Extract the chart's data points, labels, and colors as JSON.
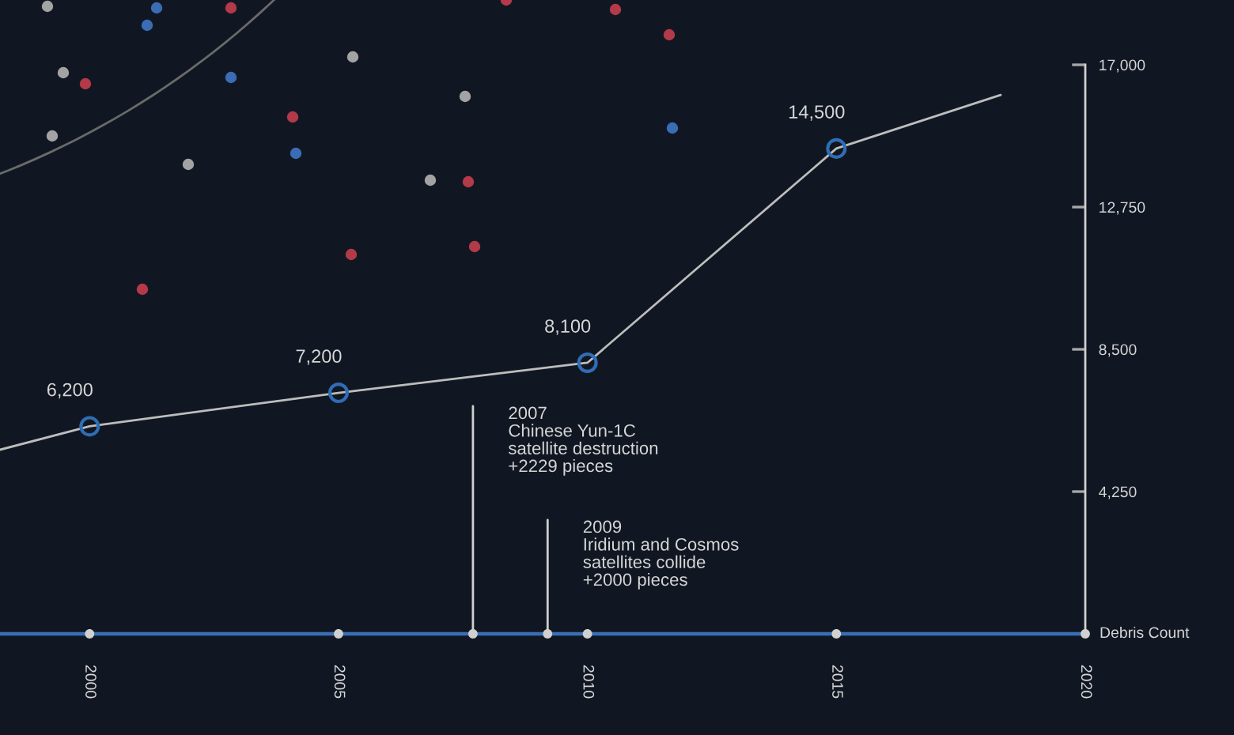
{
  "chart_data": {
    "type": "line",
    "series": [
      {
        "color": "#bdbdbd",
        "x": [
          1998.2,
          2000,
          2005,
          2010,
          2015,
          2018.3
        ],
        "values": [
          5500,
          6200,
          7200,
          8100,
          14500,
          16100
        ]
      },
      {
        "type": "scatter",
        "color": "#2f6db5",
        "marker": "circle",
        "x": [
          2000,
          2005,
          2010,
          2015
        ],
        "values": [
          6200,
          7200,
          8100,
          14500
        ],
        "value_labels": [
          "6,200",
          "7,200",
          "8,100",
          "14,500"
        ]
      }
    ],
    "xlim": [
      1998.2,
      2020
    ],
    "xticks": [
      2000,
      2005,
      2010,
      2015,
      2020
    ],
    "ylim": [
      0,
      17000
    ],
    "yticks": [
      {
        "value": 4250,
        "label": "4,250"
      },
      {
        "value": 8500,
        "label": "8,500"
      },
      {
        "value": 12750,
        "label": "12,750"
      },
      {
        "value": 17000,
        "label": "17,000"
      }
    ],
    "ylabel": "Debris Count",
    "ref_lines": [
      {
        "axis": "x",
        "value": 2007.7,
        "label": "2007\nChinese Yun-1C\nsatellite destruction\n+2229 pieces",
        "color": "#cfcfcf"
      },
      {
        "axis": "x",
        "value": 2009.2,
        "label": "2009\nIridium and Cosmos\nsatellites collide\n+2000 pieces",
        "color": "#cfcfcf"
      }
    ]
  }
}
